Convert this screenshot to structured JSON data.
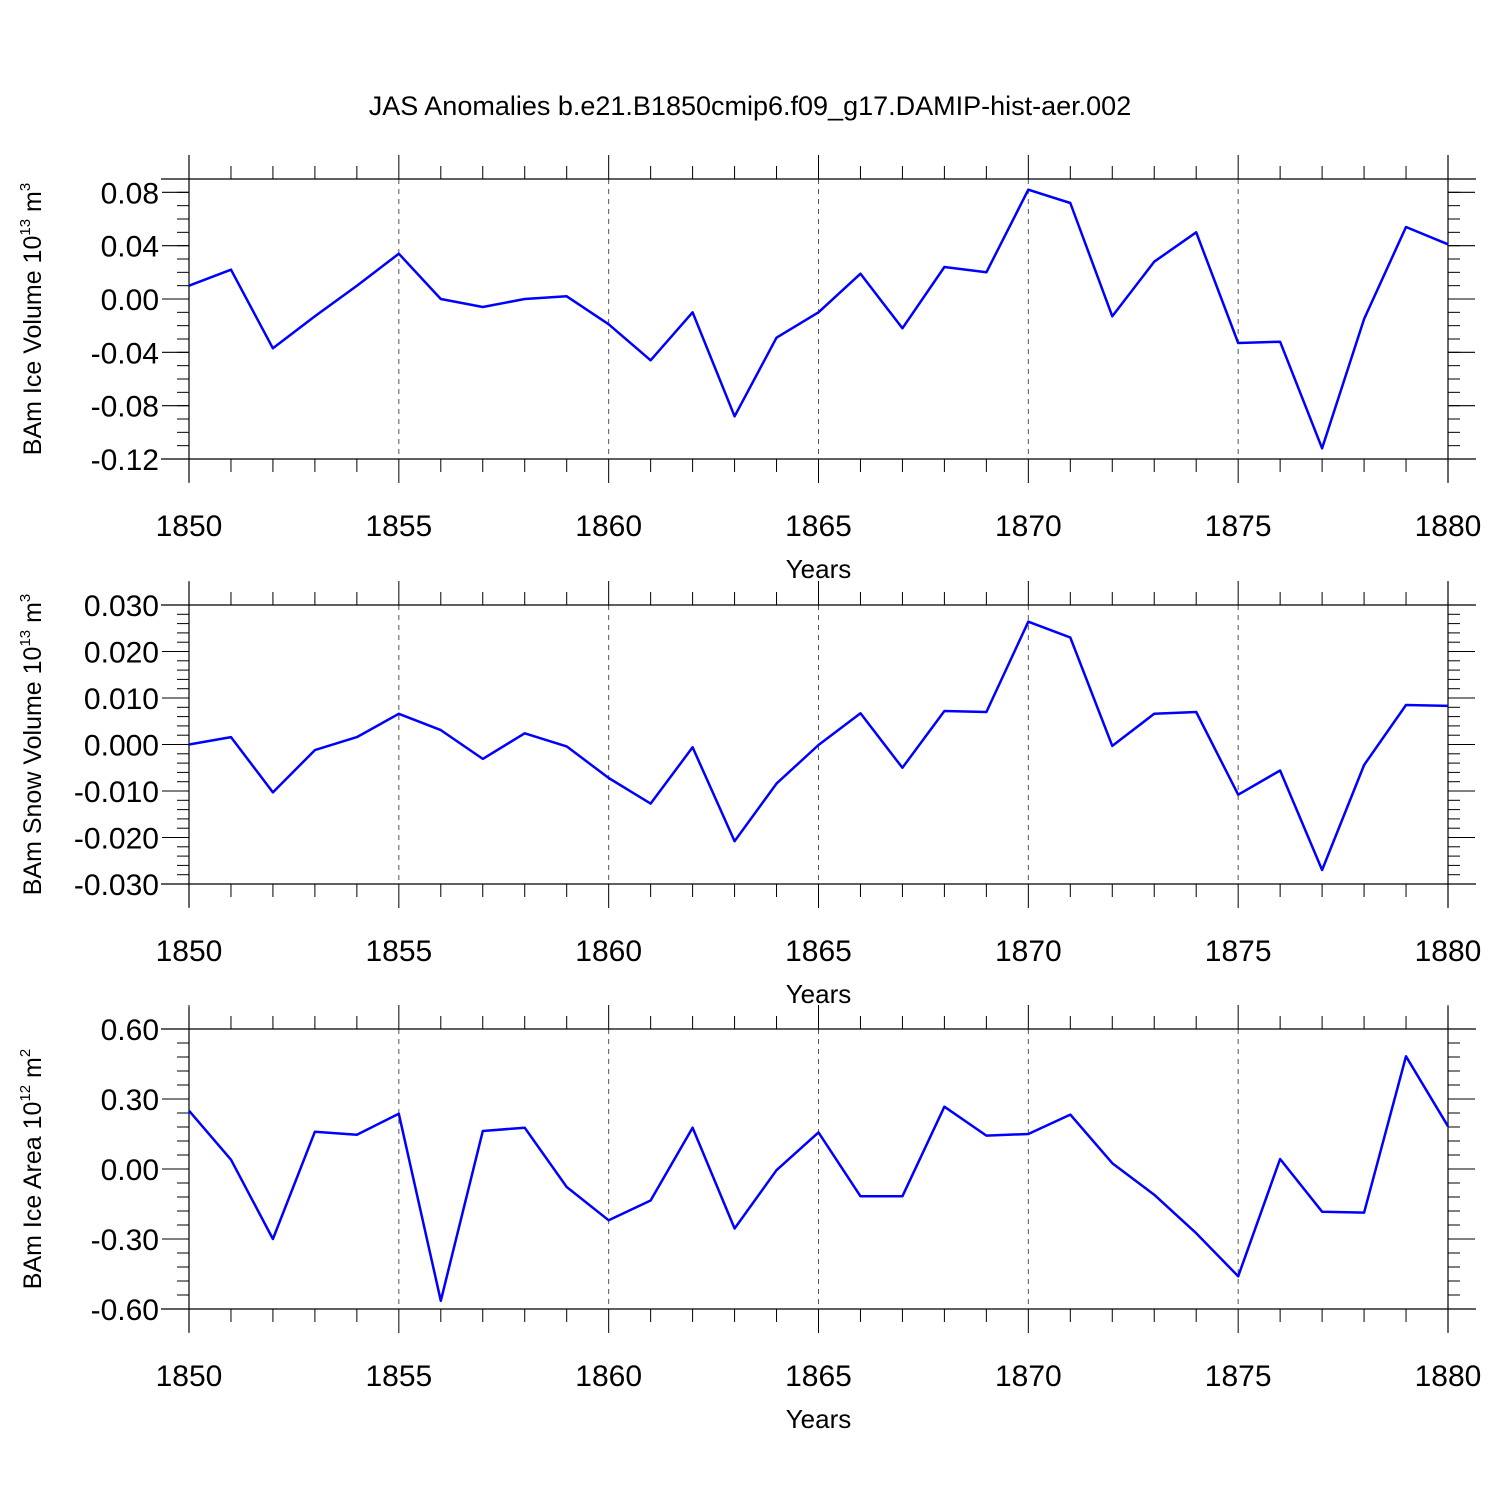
{
  "title": "JAS Anomalies b.e21.B1850cmip6.f09_g17.DAMIP-hist-aer.002",
  "chart_data": [
    {
      "type": "line",
      "xlabel": "Years",
      "ylabel": {
        "text": "BAm Ice Volume 10",
        "sup1": "13",
        "unit": " m",
        "sup2": "3"
      },
      "xlim": [
        1850,
        1880
      ],
      "ylim": [
        -0.12,
        0.09
      ],
      "xticks": [
        1850,
        1855,
        1860,
        1865,
        1870,
        1875,
        1880
      ],
      "yticks": [
        -0.12,
        -0.08,
        -0.04,
        0.0,
        0.04,
        0.08
      ],
      "ytick_labels": [
        "-0.12",
        "-0.08",
        "-0.04",
        "0.00",
        "0.04",
        "0.08"
      ],
      "minor_ystep": 0.01,
      "grid": "vertical dashed at major x ticks",
      "color": "#0000ff",
      "x": [
        1850,
        1851,
        1852,
        1853,
        1854,
        1855,
        1856,
        1857,
        1858,
        1859,
        1860,
        1861,
        1862,
        1863,
        1864,
        1865,
        1866,
        1867,
        1868,
        1869,
        1870,
        1871,
        1872,
        1873,
        1874,
        1875,
        1876,
        1877,
        1878,
        1879,
        1880
      ],
      "values": [
        0.01,
        0.022,
        -0.037,
        -0.013,
        0.01,
        0.034,
        0.0,
        -0.006,
        0.0,
        0.002,
        -0.019,
        -0.046,
        -0.01,
        -0.088,
        -0.029,
        -0.01,
        0.019,
        -0.022,
        0.024,
        0.02,
        0.082,
        0.072,
        -0.013,
        0.028,
        0.05,
        -0.033,
        -0.032,
        -0.112,
        -0.015,
        0.054,
        0.041
      ]
    },
    {
      "type": "line",
      "xlabel": "Years",
      "ylabel": {
        "text": "BAm Snow Volume 10",
        "sup1": "13",
        "unit": " m",
        "sup2": "3"
      },
      "xlim": [
        1850,
        1880
      ],
      "ylim": [
        -0.03,
        0.03
      ],
      "xticks": [
        1850,
        1855,
        1860,
        1865,
        1870,
        1875,
        1880
      ],
      "yticks": [
        -0.03,
        -0.02,
        -0.01,
        0.0,
        0.01,
        0.02,
        0.03
      ],
      "ytick_labels": [
        "-0.030",
        "-0.020",
        "-0.010",
        "0.000",
        "0.010",
        "0.020",
        "0.030"
      ],
      "minor_ystep": 0.002,
      "grid": "vertical dashed at major x ticks",
      "color": "#0000ff",
      "x": [
        1850,
        1851,
        1852,
        1853,
        1854,
        1855,
        1856,
        1857,
        1858,
        1859,
        1860,
        1861,
        1862,
        1863,
        1864,
        1865,
        1866,
        1867,
        1868,
        1869,
        1870,
        1871,
        1872,
        1873,
        1874,
        1875,
        1876,
        1877,
        1878,
        1879,
        1880
      ],
      "values": [
        0.0,
        0.0016,
        -0.0103,
        -0.0012,
        0.0016,
        0.0066,
        0.0031,
        -0.0031,
        0.0024,
        -0.0004,
        -0.0072,
        -0.0127,
        -0.0006,
        -0.0208,
        -0.0084,
        -0.0001,
        0.0067,
        -0.005,
        0.0072,
        0.007,
        0.0264,
        0.023,
        -0.0003,
        0.0066,
        0.007,
        -0.0108,
        -0.0056,
        -0.027,
        -0.0044,
        0.0085,
        0.0083
      ]
    },
    {
      "type": "line",
      "xlabel": "Years",
      "ylabel": {
        "text": "BAm Ice Area 10",
        "sup1": "12",
        "unit": " m",
        "sup2": "2"
      },
      "xlim": [
        1850,
        1880
      ],
      "ylim": [
        -0.6,
        0.6
      ],
      "xticks": [
        1850,
        1855,
        1860,
        1865,
        1870,
        1875,
        1880
      ],
      "yticks": [
        -0.6,
        -0.3,
        0.0,
        0.3,
        0.6
      ],
      "ytick_labels": [
        "-0.60",
        "-0.30",
        "0.00",
        "0.30",
        "0.60"
      ],
      "minor_ystep": 0.06,
      "grid": "vertical dashed at major x ticks",
      "color": "#0000ff",
      "x": [
        1850,
        1851,
        1852,
        1853,
        1854,
        1855,
        1856,
        1857,
        1858,
        1859,
        1860,
        1861,
        1862,
        1863,
        1864,
        1865,
        1866,
        1867,
        1868,
        1869,
        1870,
        1871,
        1872,
        1873,
        1874,
        1875,
        1876,
        1877,
        1878,
        1879,
        1880
      ],
      "values": [
        0.25,
        0.04,
        -0.3,
        0.16,
        0.147,
        0.237,
        -0.565,
        0.163,
        0.177,
        -0.077,
        -0.22,
        -0.135,
        0.177,
        -0.255,
        -0.005,
        0.157,
        -0.117,
        -0.117,
        0.267,
        0.143,
        0.15,
        0.233,
        0.025,
        -0.11,
        -0.275,
        -0.46,
        0.043,
        -0.183,
        -0.187,
        0.483,
        0.183
      ]
    }
  ]
}
